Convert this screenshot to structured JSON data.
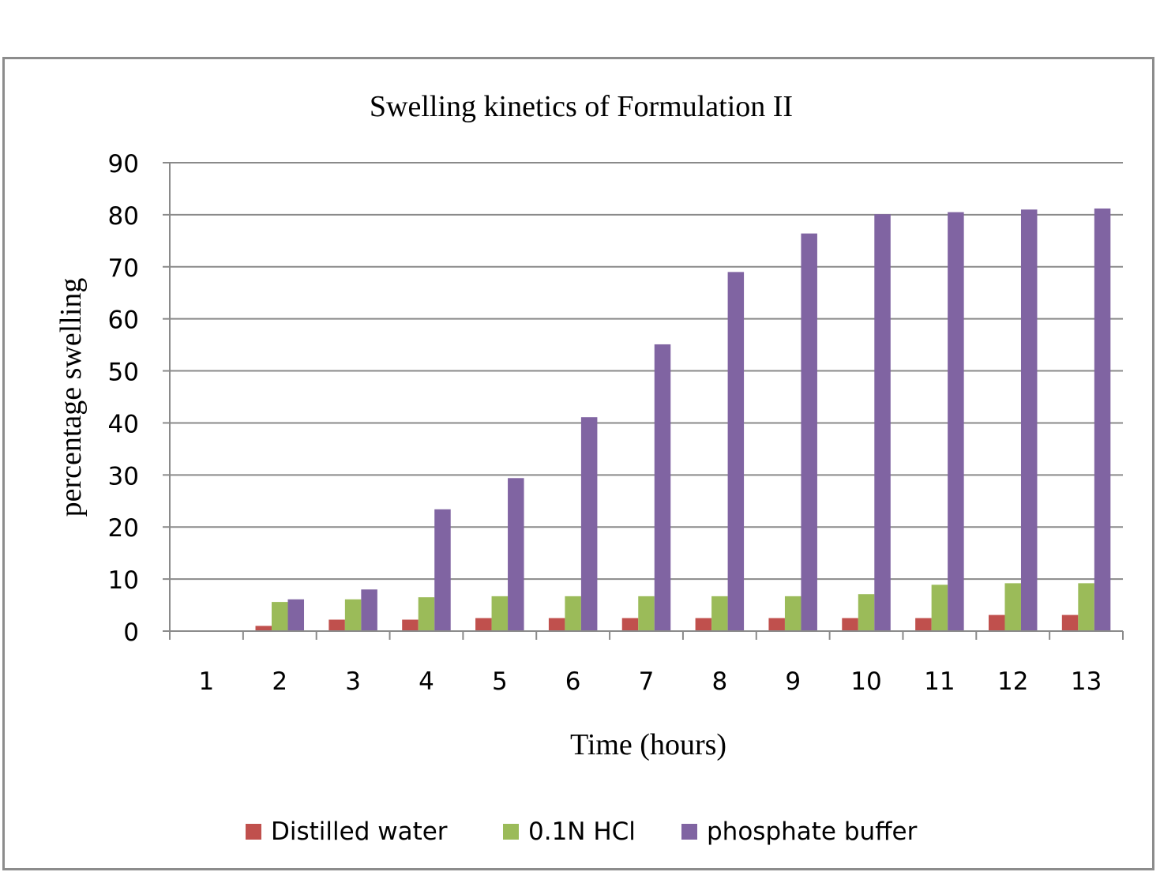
{
  "chart_data": {
    "type": "bar",
    "title": "Swelling kinetics of Formulation II",
    "xlabel": "Time (hours)",
    "ylabel": "percentage swelling",
    "ylim": [
      0,
      90
    ],
    "yticks": [
      0,
      10,
      20,
      30,
      40,
      50,
      60,
      70,
      80,
      90
    ],
    "grid": true,
    "legend_position": "bottom",
    "categories": [
      "1",
      "2",
      "3",
      "4",
      "5",
      "6",
      "7",
      "8",
      "9",
      "10",
      "11",
      "12",
      "13"
    ],
    "series": [
      {
        "name": "Distilled water",
        "color": "#c0504d",
        "values": [
          0,
          1,
          2.2,
          2.2,
          2.5,
          2.5,
          2.5,
          2.5,
          2.5,
          2.5,
          2.5,
          3.1,
          3.1
        ]
      },
      {
        "name": "0.1N HCl",
        "color": "#9bbb59",
        "values": [
          0,
          5.6,
          6.1,
          6.5,
          6.7,
          6.7,
          6.7,
          6.7,
          6.7,
          7.1,
          8.9,
          9.2,
          9.2
        ]
      },
      {
        "name": "phosphate buffer",
        "color": "#8064a2",
        "values": [
          0,
          6.1,
          8,
          23.4,
          29.4,
          41.1,
          55.1,
          69,
          76.4,
          80.1,
          80.5,
          81,
          81.2
        ]
      }
    ]
  }
}
